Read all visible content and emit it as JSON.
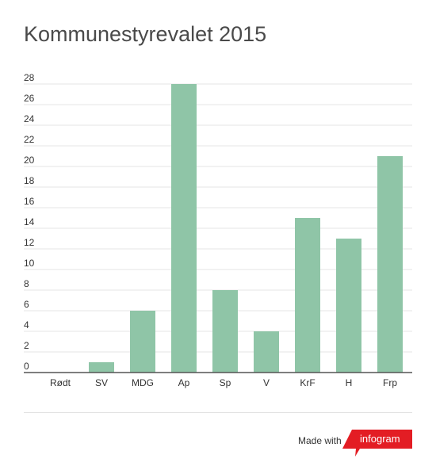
{
  "chart_data": {
    "type": "bar",
    "title": "Kommunestyrevalet 2015",
    "categories": [
      "Rødt",
      "SV",
      "MDG",
      "Ap",
      "Sp",
      "V",
      "KrF",
      "H",
      "Frp"
    ],
    "values": [
      0,
      1,
      6,
      28,
      8,
      4,
      15,
      13,
      21
    ],
    "yticks": [
      0,
      2,
      4,
      6,
      8,
      10,
      12,
      14,
      16,
      18,
      20,
      22,
      24,
      26,
      28
    ],
    "ylim": [
      0,
      28
    ],
    "xlabel": "",
    "ylabel": "",
    "grid": true,
    "bar_color": "#8fc5a7"
  },
  "footer": {
    "made_with": "Made with",
    "brand": "infogram",
    "brand_color": "#e31d24"
  }
}
